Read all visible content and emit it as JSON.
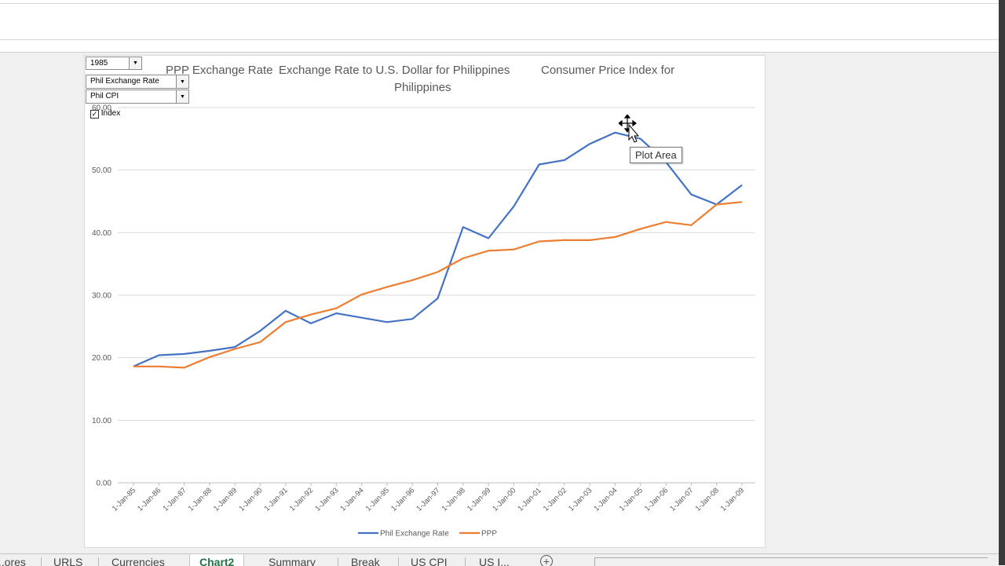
{
  "controls": {
    "year_select": "1985",
    "series1_select": "Phil Exchange Rate",
    "series2_select": "Phil CPI",
    "index_checkbox_label": "Index",
    "index_checked": true
  },
  "chart_titles": {
    "t1": "PPP Exchange Rate",
    "t2a": "Exchange Rate to U.S. Dollar for Philippines",
    "t2b": "Philippines",
    "t3": "Consumer Price Index for"
  },
  "tooltip": "Plot Area",
  "chart_data": {
    "type": "line",
    "categories": [
      "1-Jan-85",
      "1-Jan-86",
      "1-Jan-87",
      "1-Jan-88",
      "1-Jan-89",
      "1-Jan-90",
      "1-Jan-91",
      "1-Jan-92",
      "1-Jan-93",
      "1-Jan-94",
      "1-Jan-95",
      "1-Jan-96",
      "1-Jan-97",
      "1-Jan-98",
      "1-Jan-99",
      "1-Jan-00",
      "1-Jan-01",
      "1-Jan-02",
      "1-Jan-03",
      "1-Jan-04",
      "1-Jan-05",
      "1-Jan-06",
      "1-Jan-07",
      "1-Jan-08",
      "1-Jan-09"
    ],
    "series": [
      {
        "name": "Phil Exchange Rate",
        "color": "#4472c4",
        "values": [
          18.6,
          20.4,
          20.6,
          21.1,
          21.7,
          24.3,
          27.5,
          25.5,
          27.1,
          26.4,
          25.7,
          26.2,
          29.5,
          40.9,
          39.1,
          44.2,
          50.9,
          51.6,
          54.2,
          56.0,
          55.0,
          51.3,
          46.1,
          44.5,
          47.6
        ]
      },
      {
        "name": "PPP",
        "color": "#ed7d31",
        "values": [
          18.6,
          18.6,
          18.4,
          20.1,
          21.4,
          22.5,
          25.7,
          26.9,
          27.9,
          30.1,
          31.3,
          32.4,
          33.7,
          35.9,
          37.1,
          37.3,
          38.6,
          38.8,
          38.8,
          39.3,
          40.6,
          41.7,
          41.2,
          44.5,
          44.9
        ]
      }
    ],
    "ylim": [
      0,
      60
    ],
    "yticks": [
      "0.00",
      "10.00",
      "20.00",
      "30.00",
      "40.00",
      "50.00",
      "60.00"
    ],
    "grid": true,
    "legend": "bottom"
  },
  "sheet_tabs": [
    "...ores",
    "URLS",
    "Currencies",
    "Chart2",
    "Summary",
    "Break",
    "US CPI",
    "US I..."
  ],
  "active_tab": "Chart2"
}
